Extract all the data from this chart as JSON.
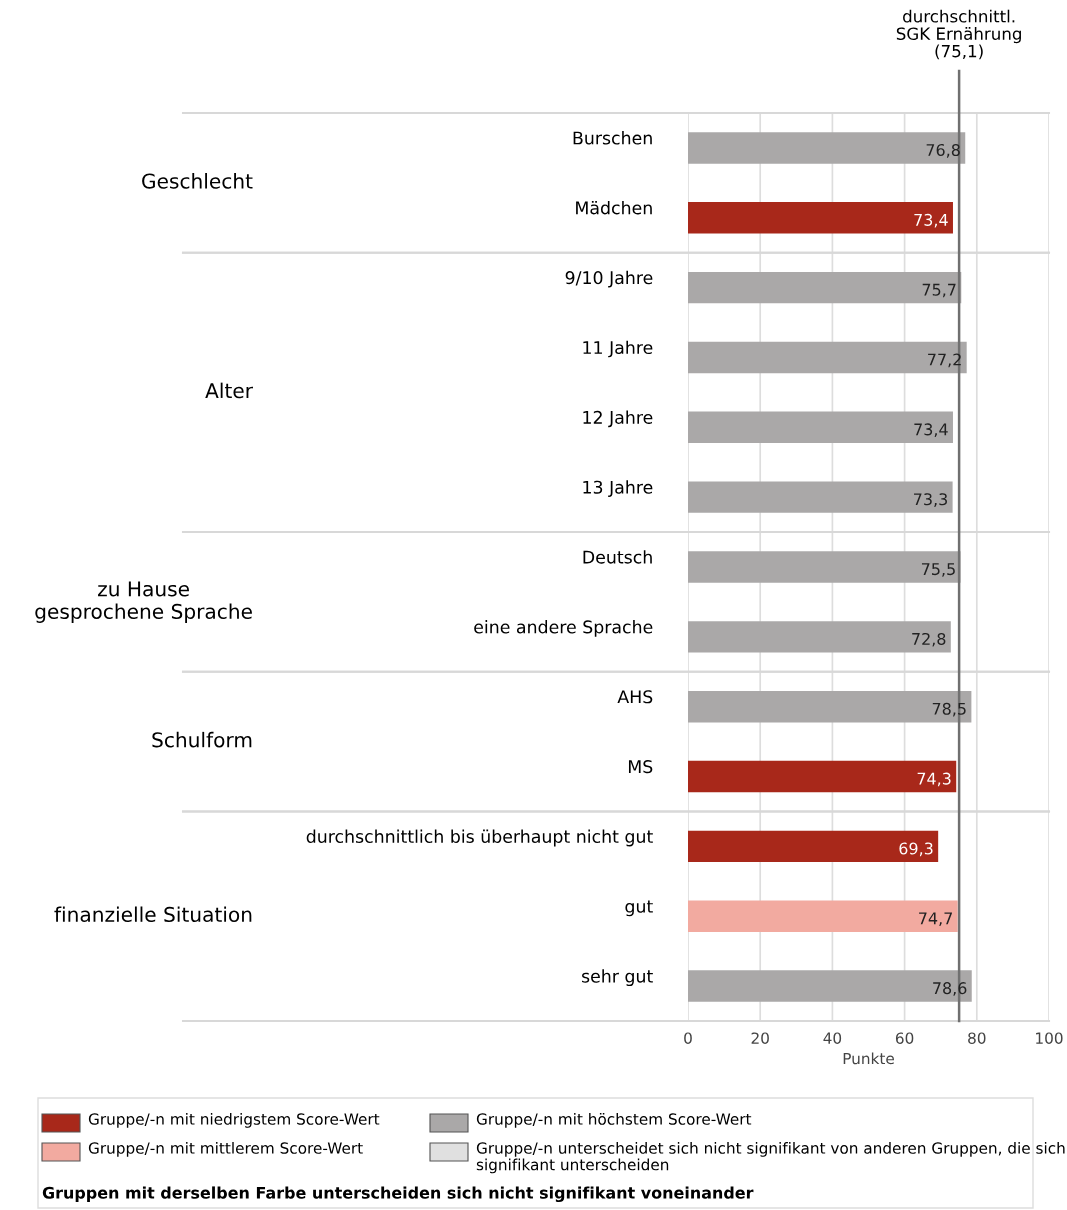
{
  "chart_data": {
    "type": "bar",
    "orientation": "horizontal",
    "categories": [
      "Burschen",
      "Mädchen",
      "9/10 Jahre",
      "11 Jahre",
      "12 Jahre",
      "13 Jahre",
      "Deutsch",
      "eine andere Sprache",
      "AHS",
      "MS",
      "durchschnittlich bis überhaupt nicht gut",
      "gut",
      "sehr gut"
    ],
    "series": [
      {
        "name": "Gruppe/-n mit niedrigstem Score-Wert",
        "color": "#a8281a",
        "values": [
          null,
          73.4,
          null,
          null,
          null,
          null,
          null,
          null,
          null,
          74.3,
          69.3,
          null,
          null
        ],
        "value_labels": [
          null,
          "73,4",
          null,
          null,
          null,
          null,
          null,
          null,
          null,
          "74,3",
          "69,3",
          null,
          null
        ]
      },
      {
        "name": "Gruppe/-n mit mittlerem Score-Wert",
        "color": "#f2aaa0",
        "values": [
          null,
          null,
          null,
          null,
          null,
          null,
          null,
          null,
          null,
          null,
          null,
          74.7,
          null
        ],
        "value_labels": [
          null,
          null,
          null,
          null,
          null,
          null,
          null,
          null,
          null,
          null,
          null,
          "74,7",
          null
        ]
      },
      {
        "name": "Gruppe/-n mit höchstem Score-Wert",
        "color": "#aaa8a8",
        "values": [
          76.8,
          null,
          75.7,
          77.2,
          73.4,
          73.3,
          75.5,
          72.8,
          78.5,
          null,
          null,
          null,
          78.6
        ],
        "value_labels": [
          "76,8",
          null,
          "75,7",
          "77,2",
          "73,4",
          "73,3",
          "75,5",
          "72,8",
          "78,5",
          null,
          null,
          null,
          "78,6"
        ]
      },
      {
        "name": "Gruppe/-n unterscheidet sich nicht signifikant von anderen Gruppen, die sich signifikant unterscheiden",
        "color": "#e0e0e0",
        "values": [
          null,
          null,
          null,
          null,
          null,
          null,
          null,
          null,
          null,
          null,
          null,
          null,
          null
        ]
      }
    ],
    "xlim": [
      0,
      100
    ],
    "xticks": [
      0,
      20,
      40,
      60,
      80,
      100
    ],
    "xlabel": "Punkte",
    "grid": "x",
    "legend": "bottom",
    "ref_lines": [
      {
        "axis": "x",
        "value": 75.1,
        "label": "durchschnittl.\nSGK Ernährung\n(75,1)",
        "color": "#707070"
      }
    ],
    "annotations": [
      "Geschlecht",
      "Alter",
      "zu Hause\ngesprochene Sprache",
      "Schulform",
      "finanzielle Situation",
      "Gruppen mit derselben Farbe unterscheiden sich nicht signifikant voneinander"
    ]
  }
}
